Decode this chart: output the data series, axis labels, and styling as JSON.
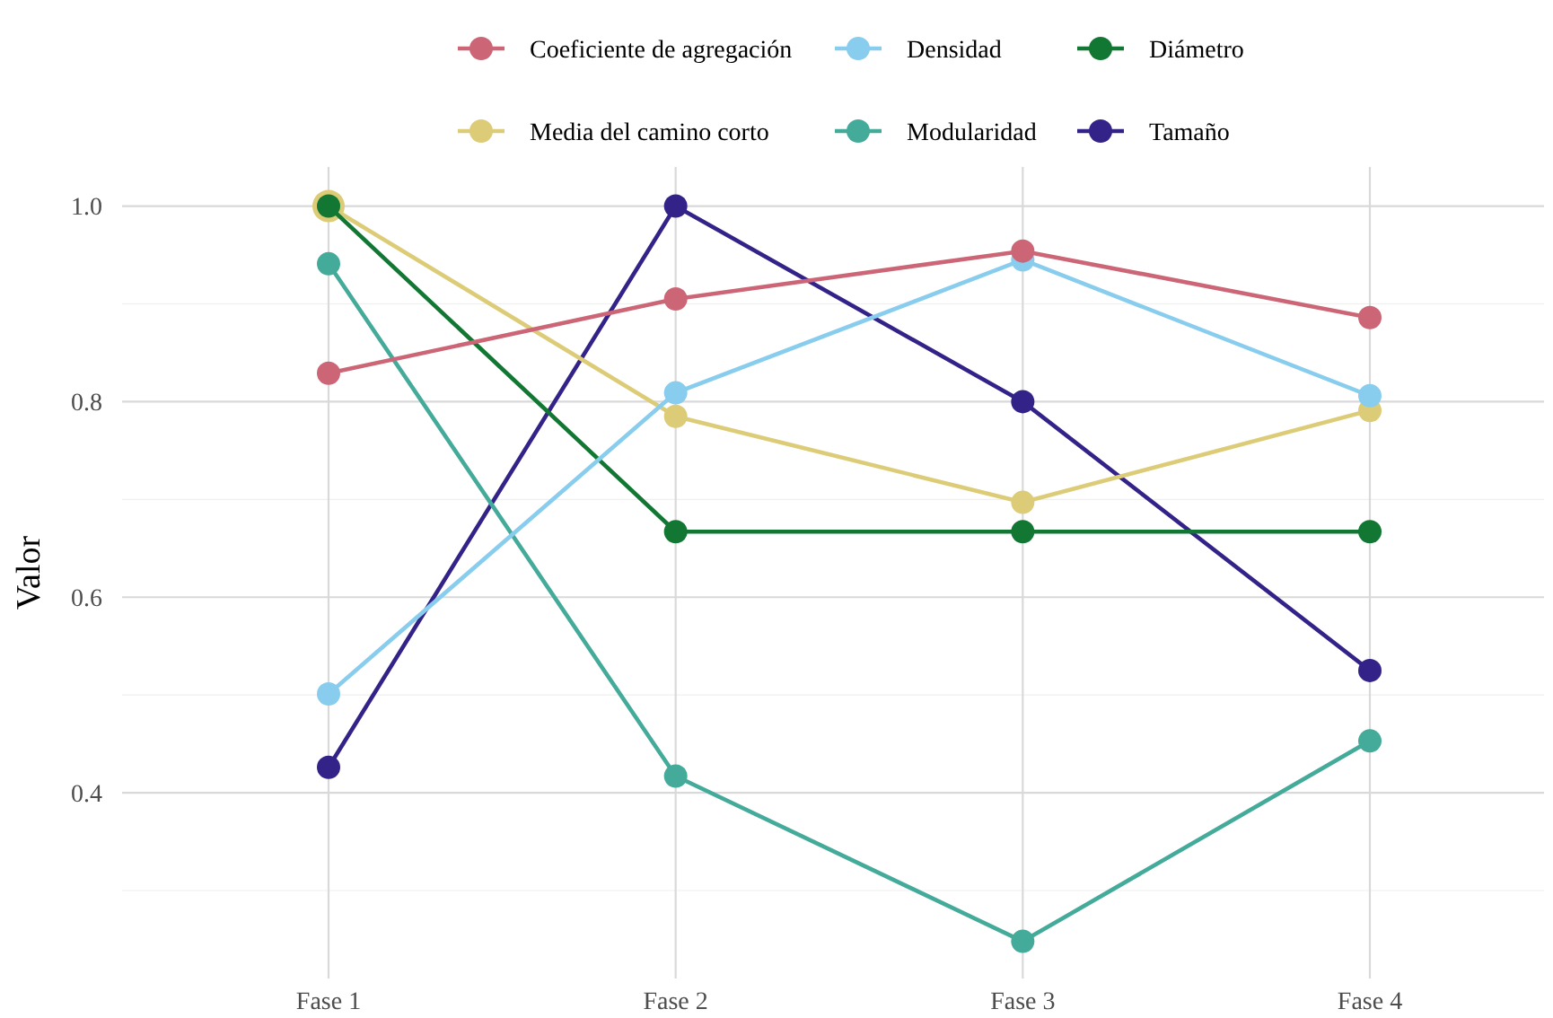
{
  "chart_data": {
    "type": "line",
    "ylabel": "Valor",
    "categories": [
      "Fase 1",
      "Fase 2",
      "Fase 3",
      "Fase 4"
    ],
    "series": [
      {
        "name": "Coeficiente de agregación",
        "color": "#cc6677",
        "values": [
          0.829,
          0.905,
          0.954,
          0.886
        ]
      },
      {
        "name": "Densidad",
        "color": "#88ccee",
        "values": [
          0.501,
          0.809,
          0.945,
          0.806
        ]
      },
      {
        "name": "Diámetro",
        "color": "#117733",
        "values": [
          1.0,
          0.667,
          0.667,
          0.667
        ]
      },
      {
        "name": "Media del camino corto",
        "color": "#ddcc77",
        "values": [
          1.0,
          0.785,
          0.697,
          0.791
        ]
      },
      {
        "name": "Modularidad",
        "color": "#44aa99",
        "values": [
          0.941,
          0.417,
          0.248,
          0.453
        ]
      },
      {
        "name": "Tamaño",
        "color": "#332288",
        "values": [
          0.426,
          1.0,
          0.8,
          0.525
        ]
      }
    ],
    "ylim": [
      0.21,
      1.04
    ],
    "yticks": [
      {
        "value": 0.3,
        "label": null
      },
      0.4,
      {
        "value": 0.5,
        "label": null
      },
      0.6,
      {
        "value": 0.7,
        "label": null
      },
      0.8,
      {
        "value": 0.9,
        "label": null
      },
      {
        "value": 1.0,
        "label": "1.0"
      }
    ],
    "grid": true,
    "legend": "top",
    "marker": "circle",
    "line_style": "solid"
  }
}
